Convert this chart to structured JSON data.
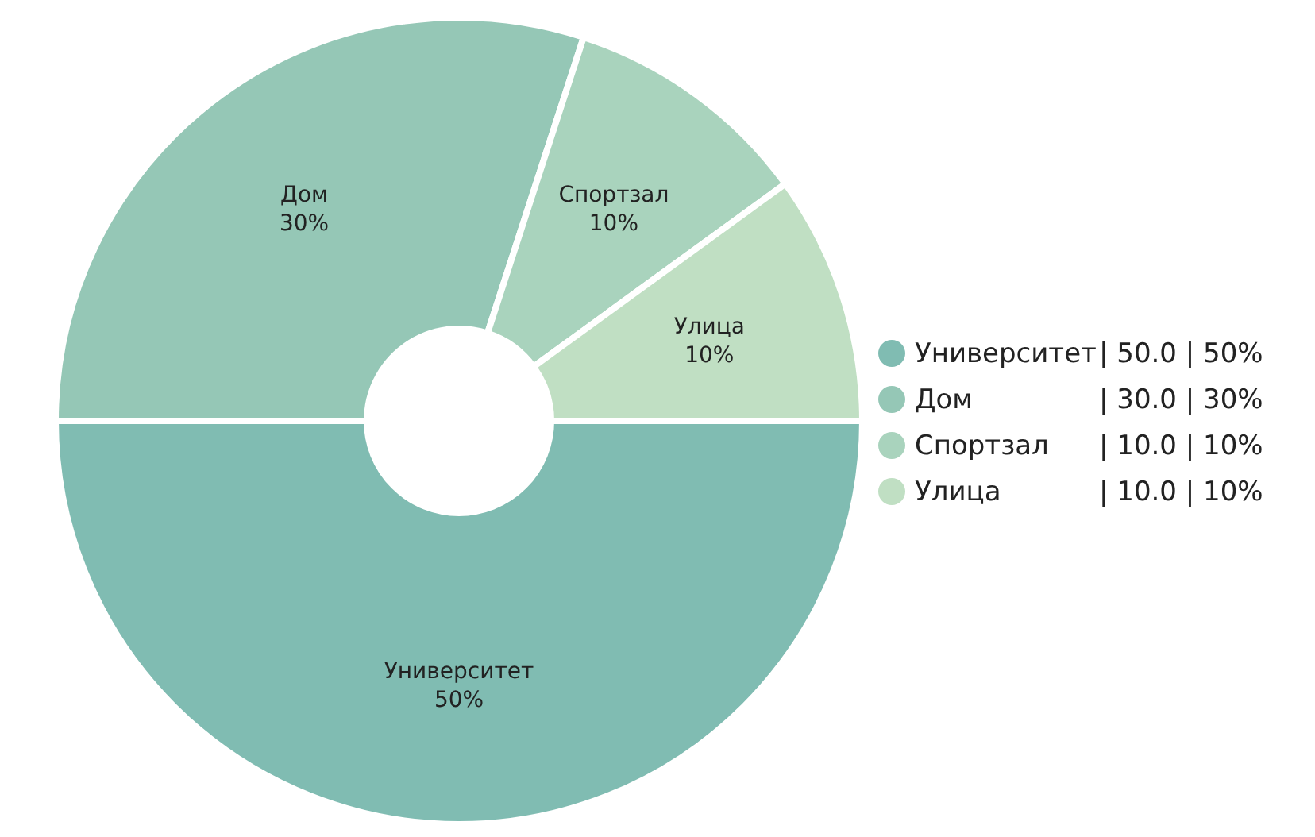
{
  "chart_data": {
    "type": "donut",
    "categories": [
      "Университет",
      "Дом",
      "Спортзал",
      "Улица"
    ],
    "values": [
      50,
      30,
      10,
      10
    ],
    "value_labels": [
      "50%",
      "30%",
      "10%",
      "10%"
    ],
    "colors": [
      "#80bcb2",
      "#95c7b6",
      "#a9d3bd",
      "#c0dfc3"
    ],
    "annotations": [
      "| 50.0 | 50%",
      "| 30.0 | 30%",
      "| 10.0 | 10%",
      "| 10.0 | 10%"
    ],
    "legend": "right"
  }
}
